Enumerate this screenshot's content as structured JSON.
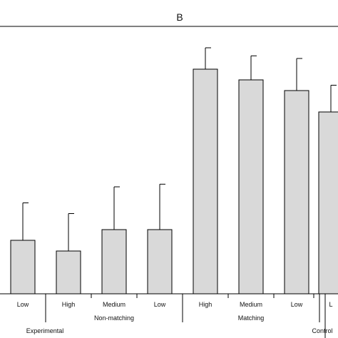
{
  "chart_data": {
    "type": "bar",
    "panel_label": "B",
    "title": "",
    "xlabel": "",
    "ylabel": "",
    "ylim": [
      0,
      100
    ],
    "grid": false,
    "legend": "none",
    "categories": [
      "Low",
      "High",
      "Medium",
      "Low",
      "High",
      "Medium",
      "Low",
      "L"
    ],
    "values": [
      20,
      16,
      24,
      24,
      84,
      80,
      76,
      68
    ],
    "error_upper": [
      34,
      30,
      40,
      41,
      92,
      89,
      88,
      78
    ],
    "groups": [
      {
        "label": "Non-matching",
        "members": [
          1,
          3
        ]
      },
      {
        "label": "Matching",
        "members": [
          4,
          6
        ]
      }
    ],
    "outer_groups": [
      {
        "label": "Experimental",
        "members": [
          0,
          6
        ]
      },
      {
        "label": "Control",
        "members": [
          7,
          7
        ]
      }
    ],
    "bar_color": "#d9d9d9",
    "edge_color": "#000000"
  }
}
